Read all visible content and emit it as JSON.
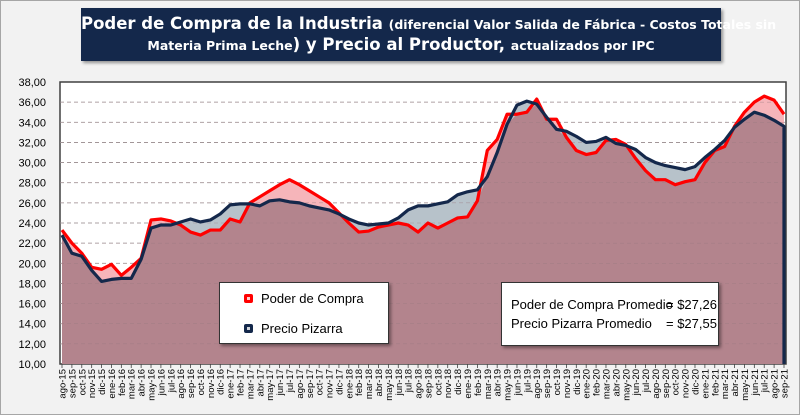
{
  "chart_data": {
    "type": "area",
    "title_main": "Poder de Compra de la Industria",
    "title_paren": "(diferencial Valor Salida de Fábrica - Costos Totales sin",
    "title_paren2": "Materia Prima Leche",
    "title_rest": ") y Precio al Productor,",
    "title_suffix": "actualizados por IPC",
    "ylim": [
      10,
      38
    ],
    "yticks": [
      "10,00",
      "12,00",
      "14,00",
      "16,00",
      "18,00",
      "20,00",
      "22,00",
      "24,00",
      "26,00",
      "28,00",
      "30,00",
      "32,00",
      "34,00",
      "36,00",
      "38,00"
    ],
    "grid": true,
    "categories": [
      "ago-15",
      "sep-15",
      "oct-15",
      "nov-15",
      "dic-15",
      "ene-16",
      "feb-16",
      "mar-16",
      "abr-16",
      "may-16",
      "jun-16",
      "jul-16",
      "ago-16",
      "sep-16",
      "oct-16",
      "nov-16",
      "dic-16",
      "ene-17",
      "feb-17",
      "mar-17",
      "abr-17",
      "may-17",
      "jun-17",
      "jul-17",
      "ago-17",
      "sep-17",
      "oct-17",
      "nov-17",
      "dic-17",
      "ene-18",
      "feb-18",
      "mar-18",
      "abr-18",
      "may-18",
      "jun-18",
      "jul-18",
      "ago-18",
      "sep-18",
      "oct-18",
      "nov-18",
      "dic-18",
      "ene-19",
      "feb-19",
      "mar-19",
      "abr-19",
      "may-19",
      "jun-19",
      "jul-19",
      "ago-19",
      "sep-19",
      "oct-19",
      "nov-19",
      "dic-19",
      "ene-20",
      "feb-20",
      "mar-20",
      "abr-20",
      "may-20",
      "jun-20",
      "jul-20",
      "ago-20",
      "sep-20",
      "oct-20",
      "nov-20",
      "dic-20",
      "ene-21",
      "feb-21",
      "mar-21",
      "abr-21",
      "may-21",
      "jun-21",
      "jul-21",
      "ago-21",
      "sep-21"
    ],
    "series": [
      {
        "name": "Poder de Compra",
        "color": "#ff0000",
        "values": [
          23.3,
          22.0,
          21.0,
          19.6,
          19.4,
          19.9,
          18.8,
          19.6,
          20.5,
          24.3,
          24.4,
          24.2,
          23.8,
          23.1,
          22.8,
          23.3,
          23.3,
          24.4,
          24.1,
          26.0,
          26.6,
          27.2,
          27.8,
          28.3,
          27.8,
          27.2,
          26.6,
          26.0,
          25.0,
          24.0,
          23.1,
          23.2,
          23.6,
          23.8,
          24.0,
          23.8,
          23.1,
          24.0,
          23.5,
          24.0,
          24.5,
          24.6,
          26.2,
          31.2,
          32.3,
          34.8,
          34.8,
          35.0,
          36.3,
          34.3,
          34.3,
          32.5,
          31.2,
          30.8,
          31.0,
          32.2,
          32.3,
          31.8,
          30.4,
          29.2,
          28.3,
          28.3,
          27.8,
          28.1,
          28.3,
          30.0,
          31.2,
          31.6,
          33.6,
          35.0,
          36.0,
          36.6,
          36.2,
          34.8
        ]
      },
      {
        "name": "Precio Pizarra",
        "color": "#14284b",
        "values": [
          22.8,
          21.0,
          20.7,
          19.3,
          18.2,
          18.4,
          18.5,
          18.5,
          20.4,
          23.5,
          23.8,
          23.8,
          24.1,
          24.4,
          24.1,
          24.3,
          24.9,
          25.8,
          25.9,
          25.9,
          25.7,
          26.2,
          26.3,
          26.1,
          26.0,
          25.7,
          25.5,
          25.3,
          24.9,
          24.4,
          24.0,
          23.8,
          23.9,
          24.0,
          24.5,
          25.3,
          25.7,
          25.7,
          25.9,
          26.1,
          26.8,
          27.1,
          27.3,
          28.6,
          31.0,
          33.8,
          35.7,
          36.1,
          35.8,
          34.5,
          33.3,
          33.1,
          32.6,
          32.0,
          32.1,
          32.5,
          31.9,
          31.7,
          31.3,
          30.5,
          30.0,
          29.7,
          29.5,
          29.3,
          29.6,
          30.5,
          31.3,
          32.2,
          33.5,
          34.3,
          35.0,
          34.7,
          34.2,
          33.6
        ]
      }
    ],
    "legend_placement": "bottom-left-inside",
    "annotations": [
      {
        "label": "Poder de Compra Promedio",
        "value": "= $27,26"
      },
      {
        "label": "Precio Pizarra Promedio",
        "value": "= $27,55"
      }
    ],
    "colors": {
      "overlap_fill": "#b3848d",
      "red_fill": "#f6b5ba",
      "navy_fill": "#b7c2ca"
    }
  }
}
